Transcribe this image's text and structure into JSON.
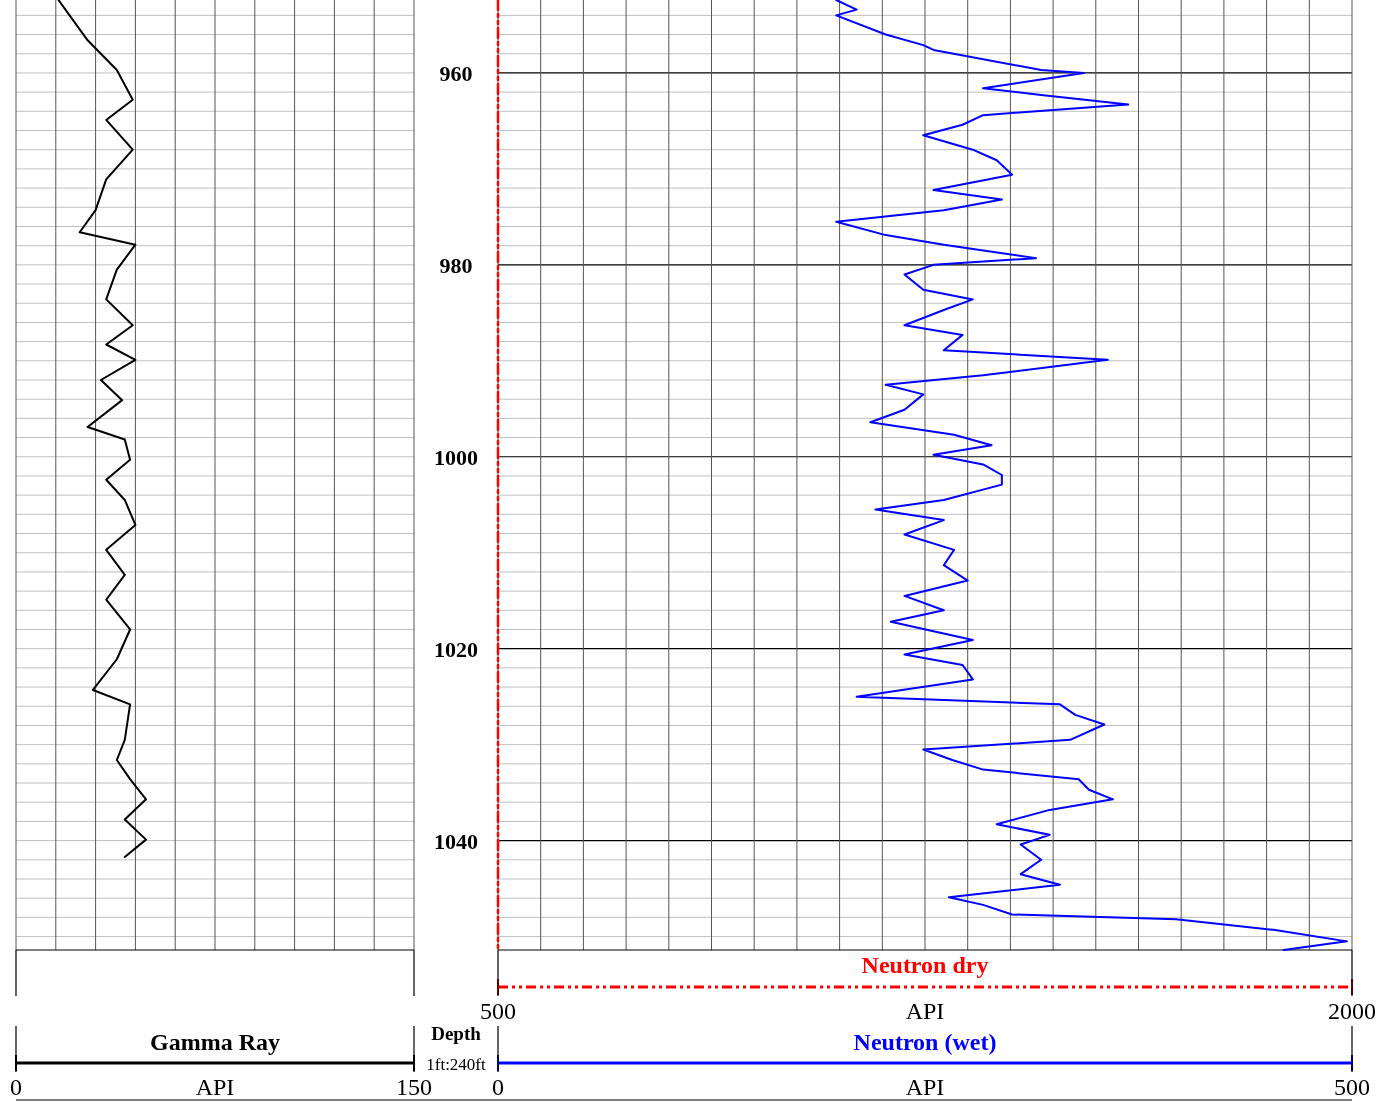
{
  "chart_data": [
    {
      "type": "line",
      "orientation": "horizontal",
      "xlim": [
        0,
        150
      ],
      "xticks": [
        0,
        {
          "value": 15,
          "label": null
        },
        {
          "value": 30,
          "label": null
        },
        {
          "value": 45,
          "label": null
        },
        {
          "value": 60,
          "label": null
        },
        {
          "value": 75,
          "label": "API"
        },
        {
          "value": 90,
          "label": null
        },
        {
          "value": 105,
          "label": null
        },
        {
          "value": 120,
          "label": null
        },
        {
          "value": 135,
          "label": null
        },
        150
      ],
      "ylim": [
        1051.4,
        952.4
      ],
      "yticks": [
        {
          "value": 954,
          "label": null
        },
        {
          "value": 956,
          "label": null
        },
        {
          "value": 958,
          "label": null
        },
        {
          "value": 960,
          "label": null
        },
        {
          "value": 962,
          "label": null
        },
        {
          "value": 964,
          "label": null
        },
        {
          "value": 966,
          "label": null
        },
        {
          "value": 968,
          "label": null
        },
        {
          "value": 970,
          "label": null
        },
        {
          "value": 972,
          "label": null
        },
        {
          "value": 974,
          "label": null
        },
        {
          "value": 976,
          "label": null
        },
        {
          "value": 978,
          "label": null
        },
        {
          "value": 980,
          "label": null
        },
        {
          "value": 982,
          "label": null
        },
        {
          "value": 984,
          "label": null
        },
        {
          "value": 986,
          "label": null
        },
        {
          "value": 988,
          "label": null
        },
        {
          "value": 990,
          "label": null
        },
        {
          "value": 992,
          "label": null
        },
        {
          "value": 994,
          "label": null
        },
        {
          "value": 996,
          "label": null
        },
        {
          "value": 998,
          "label": null
        },
        {
          "value": 1000,
          "label": null
        },
        {
          "value": 1002,
          "label": null
        },
        {
          "value": 1004,
          "label": null
        },
        {
          "value": 1006,
          "label": null
        },
        {
          "value": 1008,
          "label": null
        },
        {
          "value": 1010,
          "label": null
        },
        {
          "value": 1012,
          "label": null
        },
        {
          "value": 1014,
          "label": null
        },
        {
          "value": 1016,
          "label": null
        },
        {
          "value": 1018,
          "label": null
        },
        {
          "value": 1020,
          "label": null
        },
        {
          "value": 1022,
          "label": null
        },
        {
          "value": 1024,
          "label": null
        },
        {
          "value": 1026,
          "label": null
        },
        {
          "value": 1028,
          "label": null
        },
        {
          "value": 1030,
          "label": null
        },
        {
          "value": 1032,
          "label": null
        },
        {
          "value": 1034,
          "label": null
        },
        {
          "value": 1036,
          "label": null
        },
        {
          "value": 1038,
          "label": null
        },
        {
          "value": 1040,
          "label": null
        },
        {
          "value": 1042,
          "label": null
        },
        {
          "value": 1044,
          "label": null
        },
        {
          "value": 1046,
          "label": null
        },
        {
          "value": 1048,
          "label": null
        },
        {
          "value": 1050,
          "label": null
        }
      ],
      "tick_labels": "x",
      "grid": true,
      "legend": "bottom",
      "series": [
        {
          "name": "Gamma Ray",
          "color": "#000000",
          "line_style": "solid",
          "x": [
            952.4,
            956.6,
            959.7,
            962.8,
            964.9,
            968.0,
            971.1,
            974.3,
            976.6,
            977.9,
            980.5,
            983.6,
            986.3,
            988.3,
            989.9,
            992.0,
            994.1,
            996.9,
            998.2,
            1000.3,
            1002.4,
            1004.5,
            1007.1,
            1009.7,
            1012.3,
            1014.9,
            1018.0,
            1021.1,
            1024.3,
            1025.8,
            1029.5,
            1031.6,
            1033.6,
            1035.7,
            1037.8,
            1039.9,
            1041.7
          ],
          "values": [
            16,
            27,
            38,
            44,
            34,
            44,
            34,
            30,
            24,
            45,
            38,
            34,
            44,
            34,
            45,
            32,
            40,
            27,
            41,
            43,
            34,
            41,
            45,
            34,
            41,
            34,
            43,
            38,
            29,
            43,
            41,
            38,
            43,
            49,
            41,
            49,
            41
          ]
        }
      ]
    },
    {
      "type": "line",
      "orientation": "horizontal",
      "xlim": [
        0,
        500
      ],
      "xticks": [
        0,
        {
          "value": 25,
          "label": null
        },
        {
          "value": 50,
          "label": null
        },
        {
          "value": 75,
          "label": null
        },
        {
          "value": 100,
          "label": null
        },
        {
          "value": 125,
          "label": null
        },
        {
          "value": 150,
          "label": null
        },
        {
          "value": 175,
          "label": null
        },
        {
          "value": 200,
          "label": null
        },
        {
          "value": 225,
          "label": null
        },
        {
          "value": 250,
          "label": "API"
        },
        {
          "value": 275,
          "label": null
        },
        {
          "value": 300,
          "label": null
        },
        {
          "value": 325,
          "label": null
        },
        {
          "value": 350,
          "label": null
        },
        {
          "value": 375,
          "label": null
        },
        {
          "value": 400,
          "label": null
        },
        {
          "value": 425,
          "label": null
        },
        {
          "value": 450,
          "label": null
        },
        {
          "value": 475,
          "label": null
        },
        500
      ],
      "x2lim": [
        500,
        2000
      ],
      "x2ticks": [
        500,
        {
          "value": 1250,
          "label": "API"
        },
        2000
      ],
      "ylabel": "Depth",
      "annotations": [
        "1ft:240ft"
      ],
      "ylim": [
        1051.4,
        952.4
      ],
      "yticks": [
        {
          "value": 954,
          "label": null
        },
        {
          "value": 956,
          "label": null
        },
        {
          "value": 958,
          "label": null
        },
        960,
        {
          "value": 962,
          "label": null
        },
        {
          "value": 964,
          "label": null
        },
        {
          "value": 966,
          "label": null
        },
        {
          "value": 968,
          "label": null
        },
        {
          "value": 970,
          "label": null
        },
        {
          "value": 972,
          "label": null
        },
        {
          "value": 974,
          "label": null
        },
        {
          "value": 976,
          "label": null
        },
        {
          "value": 978,
          "label": null
        },
        980,
        {
          "value": 982,
          "label": null
        },
        {
          "value": 984,
          "label": null
        },
        {
          "value": 986,
          "label": null
        },
        {
          "value": 988,
          "label": null
        },
        {
          "value": 990,
          "label": null
        },
        {
          "value": 992,
          "label": null
        },
        {
          "value": 994,
          "label": null
        },
        {
          "value": 996,
          "label": null
        },
        {
          "value": 998,
          "label": null
        },
        1000,
        {
          "value": 1002,
          "label": null
        },
        {
          "value": 1004,
          "label": null
        },
        {
          "value": 1006,
          "label": null
        },
        {
          "value": 1008,
          "label": null
        },
        {
          "value": 1010,
          "label": null
        },
        {
          "value": 1012,
          "label": null
        },
        {
          "value": 1014,
          "label": null
        },
        {
          "value": 1016,
          "label": null
        },
        {
          "value": 1018,
          "label": null
        },
        1020,
        {
          "value": 1022,
          "label": null
        },
        {
          "value": 1024,
          "label": null
        },
        {
          "value": 1026,
          "label": null
        },
        {
          "value": 1028,
          "label": null
        },
        {
          "value": 1030,
          "label": null
        },
        {
          "value": 1032,
          "label": null
        },
        {
          "value": 1034,
          "label": null
        },
        {
          "value": 1036,
          "label": null
        },
        {
          "value": 1038,
          "label": null
        },
        1040,
        {
          "value": 1042,
          "label": null
        },
        {
          "value": 1044,
          "label": null
        },
        {
          "value": 1046,
          "label": null
        },
        {
          "value": 1048,
          "label": null
        },
        {
          "value": 1050,
          "label": null
        }
      ],
      "grid": true,
      "legend": "bottom",
      "series": [
        {
          "name": "Neutron dry",
          "color": "#ff0000",
          "line_style": "dashed",
          "axis": "x2",
          "x": [
            952.4,
            1051.4
          ],
          "values": [
            500,
            500
          ]
        },
        {
          "name": "Neutron (wet)",
          "color": "#0000ff",
          "line_style": "solid",
          "x": [
            952.4,
            953.4,
            954.0,
            956.0,
            957.1,
            957.6,
            959.7,
            960.0,
            961.6,
            962.3,
            963.3,
            964.4,
            965.4,
            966.5,
            968.0,
            969.1,
            970.6,
            972.2,
            973.2,
            974.3,
            975.5,
            976.9,
            977.9,
            979.3,
            980.0,
            981.0,
            982.6,
            983.6,
            984.7,
            986.3,
            987.3,
            988.9,
            989.9,
            991.5,
            992.5,
            993.5,
            995.1,
            996.4,
            997.7,
            998.8,
            999.8,
            1000.8,
            1001.9,
            1002.9,
            1004.5,
            1005.5,
            1006.6,
            1008.1,
            1009.7,
            1011.3,
            1012.9,
            1014.5,
            1016.0,
            1017.2,
            1019.1,
            1020.6,
            1021.7,
            1023.2,
            1025.0,
            1025.8,
            1026.9,
            1027.9,
            1029.5,
            1030.5,
            1031.6,
            1032.6,
            1033.6,
            1034.7,
            1035.7,
            1036.8,
            1038.3,
            1039.4,
            1040.4,
            1042.0,
            1043.5,
            1044.6,
            1045.9,
            1046.7,
            1047.7,
            1048.2,
            1049.3,
            1050.5,
            1051.4
          ],
          "values": [
            198,
            210,
            198,
            227,
            249,
            255,
            318,
            343,
            284,
            318,
            369,
            284,
            272,
            249,
            278,
            292,
            301,
            255,
            295,
            261,
            198,
            227,
            261,
            315,
            255,
            238,
            249,
            278,
            261,
            238,
            272,
            261,
            357,
            284,
            227,
            249,
            238,
            218,
            267,
            289,
            255,
            284,
            295,
            295,
            261,
            221,
            261,
            238,
            267,
            261,
            275,
            238,
            261,
            230,
            278,
            238,
            272,
            278,
            210,
            329,
            338,
            355,
            335,
            249,
            266,
            284,
            340,
            346,
            360,
            323,
            292,
            323,
            306,
            318,
            306,
            329,
            264,
            284,
            301,
            397,
            454,
            497,
            460
          ]
        }
      ]
    }
  ]
}
